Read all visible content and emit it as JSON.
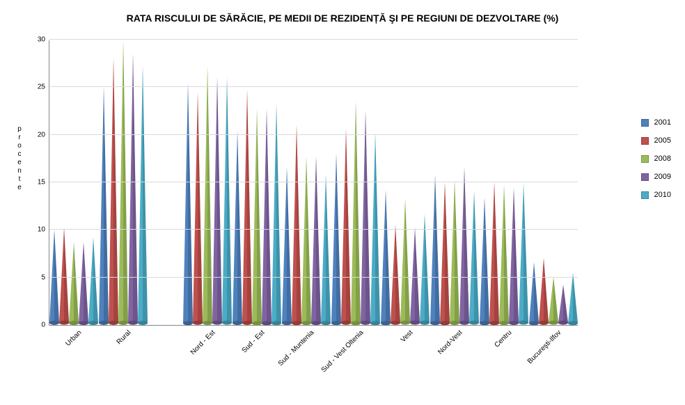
{
  "chart": {
    "type": "cone-bar",
    "title": "RATA RISCULUI DE SĂRĂCIE, PE MEDII DE REZIDENȚĂ ŞI PE REGIUNI DE DEZVOLTARE (%)",
    "title_fontsize": 14,
    "y_axis": {
      "label": "procente",
      "label_fontsize": 10,
      "min": 0,
      "max": 30,
      "tick_step": 5,
      "tick_fontsize": 10
    },
    "x_axis": {
      "label_fontsize": 10,
      "label_rotation": -45
    },
    "grid_color": "#d9d9d9",
    "background_color": "#ffffff",
    "gap_after_index": 1,
    "gap_weight": 0.7,
    "series": [
      {
        "name": "2001",
        "color": "#4f81bd",
        "shade": "#385d8a"
      },
      {
        "name": "2005",
        "color": "#c0504d",
        "shade": "#8c3836"
      },
      {
        "name": "2008",
        "color": "#9bbb59",
        "shade": "#71893f"
      },
      {
        "name": "2009",
        "color": "#8064a2",
        "shade": "#5c4776"
      },
      {
        "name": "2010",
        "color": "#4bacc6",
        "shade": "#357d91"
      }
    ],
    "categories": [
      {
        "label": "Urban",
        "values": [
          9.8,
          10.0,
          8.5,
          8.5,
          9.0
        ]
      },
      {
        "label": "Rural",
        "values": [
          24.8,
          27.8,
          29.7,
          28.3,
          27.0
        ]
      },
      {
        "label": "Nord - Est",
        "values": [
          25.2,
          24.2,
          27.0,
          25.8,
          25.8
        ]
      },
      {
        "label": "Sud - Est",
        "values": [
          20.2,
          24.5,
          22.5,
          22.5,
          23.0
        ]
      },
      {
        "label": "Sud - Muntenia",
        "values": [
          16.4,
          20.8,
          17.5,
          17.5,
          15.6
        ]
      },
      {
        "label": "Sud - Vest Oltenia",
        "values": [
          17.8,
          20.4,
          23.3,
          22.3,
          20.0
        ]
      },
      {
        "label": "Vest",
        "values": [
          14.0,
          10.3,
          13.0,
          10.0,
          11.4
        ]
      },
      {
        "label": "Nord-Vest",
        "values": [
          15.6,
          14.8,
          15.0,
          16.3,
          13.8
        ]
      },
      {
        "label": "Centru",
        "values": [
          13.2,
          14.8,
          14.5,
          14.2,
          14.6
        ]
      },
      {
        "label": "Bucureşti-Ilfov",
        "values": [
          6.4,
          6.8,
          4.8,
          4.0,
          5.3
        ]
      }
    ],
    "legend": {
      "fontsize": 11
    },
    "cone_base_width": 14
  }
}
